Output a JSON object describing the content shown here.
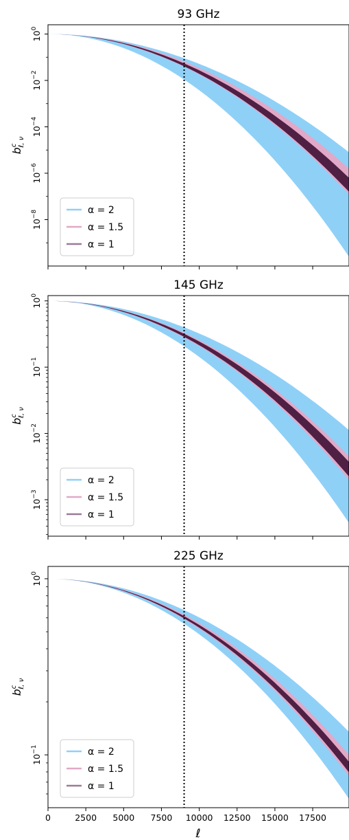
{
  "x_label": "ℓ",
  "y_label": "b",
  "y_label_sup": "c",
  "y_label_sub": "ℓ, ν",
  "x_ticks": [
    "0",
    "2500",
    "5000",
    "7500",
    "10000",
    "12500",
    "15000",
    "17500"
  ],
  "legend": [
    "α = 2",
    "α = 1.5",
    "α = 1"
  ],
  "colors": {
    "blue": "#8fd0f7",
    "pink": "#e2a8c7",
    "purple": "#4f1f44",
    "purple_legend": "#9b7a98",
    "vline": "#000000"
  },
  "chart_data": [
    {
      "type": "area",
      "title": "93 GHz",
      "xlim": [
        0,
        19900
      ],
      "ylim_log10": [
        -10.0,
        0.4
      ],
      "y_scale": "log",
      "y_ticks": [
        {
          "base": "10",
          "exp": "0",
          "value": 0
        },
        {
          "base": "10",
          "exp": "−2",
          "value": -2
        },
        {
          "base": "10",
          "exp": "−4",
          "value": -4
        },
        {
          "base": "10",
          "exp": "−6",
          "value": -6
        },
        {
          "base": "10",
          "exp": "−8",
          "value": -8
        }
      ],
      "vline_x": 9000,
      "legend_loc": "lower left",
      "band_blue_log10_at_ell_19900": [
        -9.6,
        -5.1
      ],
      "band_pink_log10_at_ell_19900": [
        -6.9,
        -5.8
      ],
      "band_purple_log10_at_ell_19900": [
        -6.8,
        -6.2
      ]
    },
    {
      "type": "area",
      "title": "145 GHz",
      "xlim": [
        0,
        19900
      ],
      "ylim_log10": [
        -3.55,
        0.08
      ],
      "y_scale": "log",
      "y_ticks": [
        {
          "base": "10",
          "exp": "0",
          "value": 0
        },
        {
          "base": "10",
          "exp": "−1",
          "value": -1
        },
        {
          "base": "10",
          "exp": "−2",
          "value": -2
        },
        {
          "base": "10",
          "exp": "−3",
          "value": -3
        }
      ],
      "vline_x": 9000,
      "legend_loc": "lower left",
      "band_blue_log10_at_ell_19900": [
        -3.35,
        -1.95
      ],
      "band_pink_log10_at_ell_19900": [
        -2.7,
        -2.35
      ],
      "band_purple_log10_at_ell_19900": [
        -2.65,
        -2.43
      ]
    },
    {
      "type": "area",
      "title": "225 GHz",
      "xlim": [
        0,
        19900
      ],
      "ylim_log10": [
        -1.3,
        0.07
      ],
      "y_scale": "log",
      "y_ticks": [
        {
          "base": "10",
          "exp": "0",
          "value": 0
        },
        {
          "base": "10",
          "exp": "−1",
          "value": -1
        }
      ],
      "vline_x": 9000,
      "legend_loc": "lower left",
      "band_blue_log10_at_ell_19900": [
        -1.25,
        -0.87
      ],
      "band_pink_log10_at_ell_19900": [
        -1.12,
        -1.0
      ],
      "band_purple_log10_at_ell_19900": [
        -1.1,
        -1.04
      ]
    }
  ]
}
